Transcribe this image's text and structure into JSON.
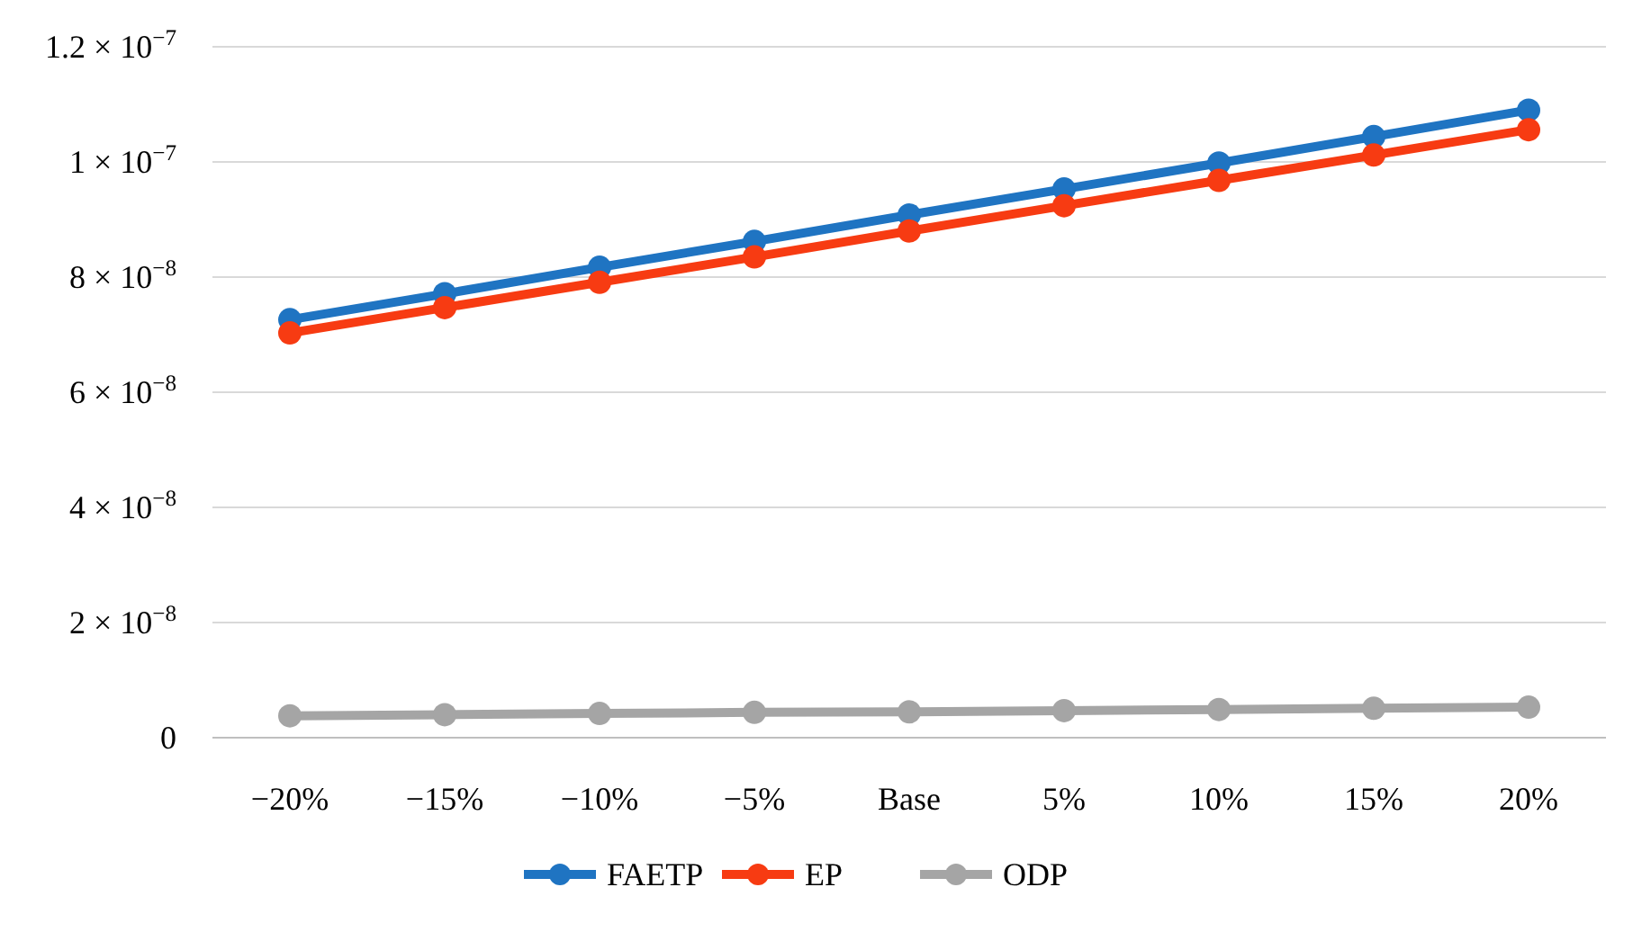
{
  "chart_data": {
    "type": "line",
    "categories": [
      "−20%",
      "−15%",
      "−10%",
      "−5%",
      "Base",
      "5%",
      "10%",
      "15%",
      "20%"
    ],
    "series": [
      {
        "name": "FAETP",
        "color": "#1f74c2",
        "values": [
          7.26e-08,
          7.71e-08,
          8.17e-08,
          8.62e-08,
          9.08e-08,
          9.53e-08,
          9.98e-08,
          1.044e-07,
          1.09e-07
        ]
      },
      {
        "name": "EP",
        "color": "#f73b12",
        "values": [
          7.03e-08,
          7.47e-08,
          7.91e-08,
          8.35e-08,
          8.8e-08,
          9.24e-08,
          9.68e-08,
          1.012e-07,
          1.056e-07
        ]
      },
      {
        "name": "ODP",
        "color": "#a5a5a5",
        "values": [
          3.8e-09,
          4e-09,
          4.2e-09,
          4.4e-09,
          4.5e-09,
          4.7e-09,
          4.9e-09,
          5.1e-09,
          5.3e-09
        ]
      }
    ],
    "ylim": [
      0,
      1.2e-07
    ],
    "yticks": [
      {
        "value": 0,
        "label": "0"
      },
      {
        "value": 2e-08,
        "label": "2 × 10$^{−8}$"
      },
      {
        "value": 4e-08,
        "label": "4 × 10$^{−8}$"
      },
      {
        "value": 6e-08,
        "label": "6 × 10$^{−8}$"
      },
      {
        "value": 8e-08,
        "label": "8 × 10$^{−8}$"
      },
      {
        "value": 1e-07,
        "label": "1 × 10$^{−7}$"
      },
      {
        "value": 1.2e-07,
        "label": "1.2 × 10$^{−7}$"
      }
    ],
    "grid": "y",
    "legend": "bottom",
    "marker": "circle",
    "line_style": "solid"
  }
}
